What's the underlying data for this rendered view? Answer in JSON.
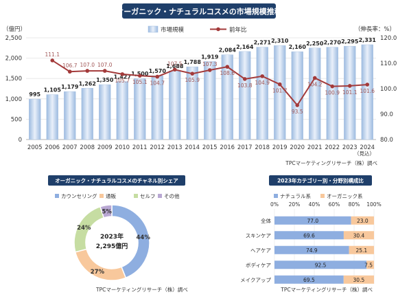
{
  "chart_data": [
    {
      "type": "bar+line",
      "title": "オーガニック・ナチュラルコスメの市場規模推移",
      "left_axis_label": "（億円）",
      "right_axis_label": "（伸長率：%）",
      "x": [
        "2005",
        "2006",
        "2007",
        "2008",
        "2009",
        "2010",
        "2011",
        "2012",
        "2013",
        "2014",
        "2015",
        "2016",
        "2017",
        "2018",
        "2019",
        "2020",
        "2021",
        "2022",
        "2023",
        "2024"
      ],
      "x_note": "（見込）",
      "series": [
        {
          "name": "市場規模",
          "type": "bar",
          "axis": "left",
          "values": [
            995,
            1105,
            1179,
            1262,
            1350,
            1427,
            1500,
            1570,
            1688,
            1788,
            1919,
            2084,
            2164,
            2271,
            2310,
            2160,
            2250,
            2270,
            2295,
            2331
          ]
        },
        {
          "name": "前年比",
          "type": "line",
          "axis": "right",
          "values": [
            null,
            111.1,
            106.7,
            107.0,
            107.0,
            105.7,
            105.1,
            104.7,
            107.5,
            105.9,
            107.3,
            108.6,
            103.8,
            104.9,
            101.7,
            93.5,
            104.2,
            100.9,
            101.1,
            101.6
          ]
        }
      ],
      "left_ticks": [
        "0",
        "500",
        "1,000",
        "1,500",
        "2,000",
        "2,500"
      ],
      "right_ticks": [
        "80.0",
        "90.0",
        "100.0",
        "110.0",
        "120.0"
      ],
      "ylim_left": [
        0,
        2500
      ],
      "ylim_right": [
        80,
        120
      ],
      "grid": true,
      "legend_position": "top",
      "bar_color": "#b7cde7",
      "line_color": "#a33a3a",
      "source": "TPCマーケティングリサーチ（株）調べ"
    },
    {
      "type": "pie",
      "title": "オーガニック・ナチュラルコスメのチャネル別シェア",
      "categories": [
        "カウンセリング",
        "通販",
        "セルフ",
        "その他"
      ],
      "values": [
        44,
        27,
        24,
        5
      ],
      "value_labels": [
        "44%",
        "27%",
        "24%",
        "5%"
      ],
      "colors": [
        "#8eaee0",
        "#f8c89c",
        "#c6dda2",
        "#b9a8d3"
      ],
      "center_year": "2023年",
      "center_total": "2,295億円",
      "legend_position": "top",
      "source": "TPCマーケティングリサーチ（株）調べ"
    },
    {
      "type": "bar",
      "orientation": "horizontal",
      "stacked": true,
      "title": "2023年カテゴリー別・分野別構成比",
      "categories": [
        "全体",
        "スキンケア",
        "ヘアケア",
        "ボディケア",
        "メイクアップ"
      ],
      "series": [
        {
          "name": "ナチュラル系",
          "values": [
            77.0,
            69.6,
            74.9,
            92.5,
            69.5
          ],
          "color": "#8eaee0"
        },
        {
          "name": "オーガニック系",
          "values": [
            23.0,
            30.4,
            25.1,
            7.5,
            30.5
          ],
          "color": "#f8c89c"
        }
      ],
      "ticks": [
        "0%",
        "20%",
        "40%",
        "60%",
        "80%",
        "100%"
      ],
      "xlim": [
        0,
        100
      ],
      "legend_position": "top",
      "source": "TPCマーケティングリサーチ（株）調べ"
    }
  ]
}
